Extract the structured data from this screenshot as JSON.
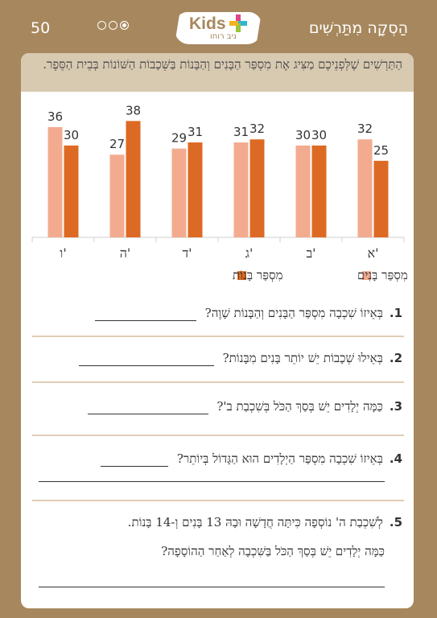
{
  "header": {
    "page_number": "50",
    "logo_word": "Kids",
    "logo_sub": "ניב רוחו",
    "title": "הַסְקָה מִתַּרְשִׁים"
  },
  "instruction": "הַתַּרְשִׁים שֶׁלְּפְנֵיכֶם מַצִּיג אֶת מִסְפַּר הַבָּנִים וְהַבָּנוֹת בַּשְּׁכָבוֹת הַשּׁוֹנוֹת בְּבֵית הַסֵּפֶר.",
  "colors": {
    "boys": "#f3ab8f",
    "girls": "#dd6a24",
    "accent": "#a7875d",
    "banner": "#d8c9b1"
  },
  "chart_data": {
    "type": "bar",
    "categories": [
      "ו'",
      "ה'",
      "ד'",
      "ג'",
      "ב'",
      "א'"
    ],
    "series": [
      {
        "name": "מִסְפַּר בָּנִים",
        "values": [
          36,
          27,
          29,
          31,
          30,
          32
        ]
      },
      {
        "name": "מִסְפַּר בָּנוֹת",
        "values": [
          30,
          38,
          31,
          32,
          30,
          25
        ]
      }
    ],
    "ylim": [
      0,
      40
    ],
    "grid": false,
    "legend_position": "bottom"
  },
  "questions": [
    {
      "num": "1.",
      "text": "בְּאֵיזוֹ שִׁכְבָה מִסְפַּר הַבָּנִים וְהַבָּנוֹת שָׁוֶה?"
    },
    {
      "num": "2.",
      "text": "בְּאֵילוּ שְׁכָבוֹת יֵשׁ יוֹתֵר בָּנִים מִבָּנוֹת?"
    },
    {
      "num": "3.",
      "text": "כַּמָּה יְלָדִים יֵשׁ בְּסַךְ הַכֹּל בְּשִׁכְבַת ב'?"
    },
    {
      "num": "4.",
      "text": "בְּאֵיזוֹ שִׁכְבָה מִסְפַּר הַיְלָדִים הוּא הַגָּדוֹל בְּיוֹתֵר?"
    },
    {
      "num": "5.",
      "text": "לְשִׁכְבַת ה' נוֹסְפָה כִּיתָּה חֲדָשָׁה וּבָהּ 13 בָּנִים וְ-14 בָּנוֹת.",
      "text2": "כַּמָּה יְלָדִים יֵשׁ בְּסַךְ הַכֹּל בַּשִּׁכְבָה לְאַחַר הַהוֹסָפָה?"
    }
  ]
}
